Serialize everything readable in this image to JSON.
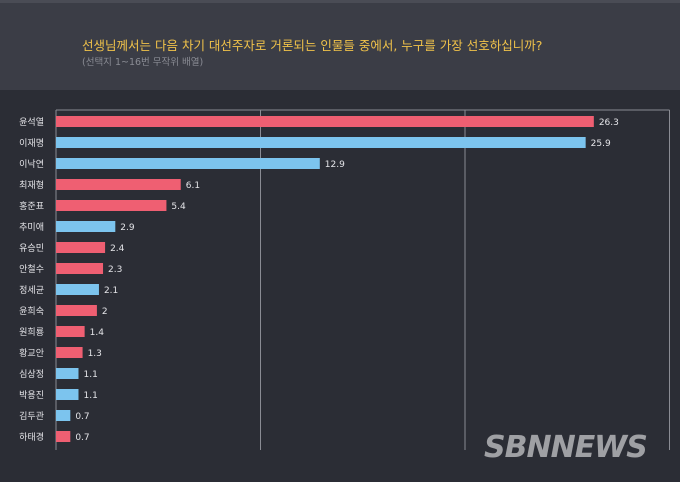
{
  "question": "선생님께서는 다음 차기 대선주자로 거론되는 인물들 중에서, 누구를 가장 선호하십니까?",
  "note": "(선택지 1~16번 무작위 배열)",
  "watermark": "SBNNEWS",
  "colors": {
    "red": "#ef5f72",
    "blue": "#7cc4ee",
    "label": "#e4e4e8",
    "grid": "#8a8c94"
  },
  "chart_data": {
    "type": "bar",
    "orientation": "horizontal",
    "categories": [
      "윤석열",
      "이재명",
      "이낙연",
      "최재형",
      "홍준표",
      "추미애",
      "유승민",
      "안철수",
      "정세균",
      "윤희숙",
      "원희룡",
      "황교안",
      "심상정",
      "박용진",
      "김두관",
      "하태경"
    ],
    "values": [
      26.3,
      25.9,
      12.9,
      6.1,
      5.4,
      2.9,
      2.4,
      2.3,
      2.1,
      2,
      1.4,
      1.3,
      1.1,
      1.1,
      0.7,
      0.7
    ],
    "value_labels": [
      "26.3",
      "25.9",
      "12.9",
      "6.1",
      "5.4",
      "2.9",
      "2.4",
      "2.3",
      "2.1",
      "2",
      "1.4",
      "1.3",
      "1.1",
      "1.1",
      "0.7",
      "0.7"
    ],
    "bar_colors": [
      "red",
      "blue",
      "blue",
      "red",
      "red",
      "blue",
      "red",
      "red",
      "blue",
      "red",
      "red",
      "red",
      "blue",
      "blue",
      "blue",
      "red"
    ],
    "xlim": [
      0,
      30
    ],
    "gridlines": [
      0,
      10,
      20,
      30
    ],
    "legend": "none"
  }
}
